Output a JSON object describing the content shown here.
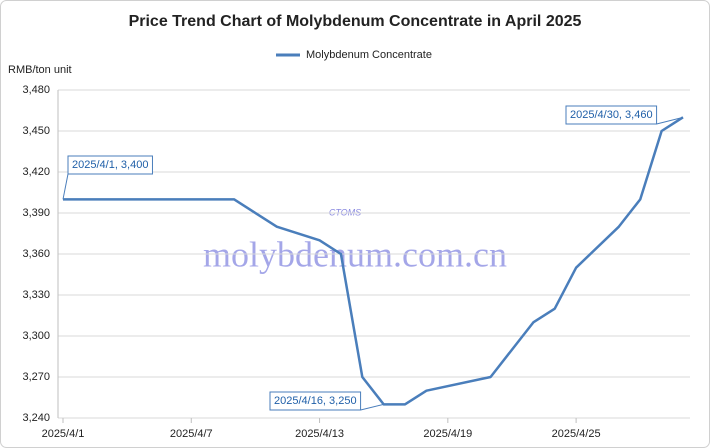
{
  "chart_data": {
    "type": "line",
    "title": "Price Trend Chart of Molybdenum Concentrate in April 2025",
    "y_axis_label": "RMB/ton unit",
    "watermark": "molybdenum.com.cn",
    "watermark_logo": "CTOMS",
    "x": [
      "2025/4/1",
      "2025/4/9",
      "2025/4/11",
      "2025/4/13",
      "2025/4/14",
      "2025/4/15",
      "2025/4/16",
      "2025/4/17",
      "2025/4/18",
      "2025/4/21",
      "2025/4/23",
      "2025/4/24",
      "2025/4/25",
      "2025/4/27",
      "2025/4/28",
      "2025/4/29",
      "2025/4/30"
    ],
    "series": [
      {
        "name": "Molybdenum Concentrate",
        "color": "#4a7ebb",
        "values": [
          3400,
          3400,
          3380,
          3370,
          3360,
          3270,
          3250,
          3250,
          3260,
          3270,
          3310,
          3320,
          3350,
          3380,
          3400,
          3450,
          3460
        ]
      }
    ],
    "xlim": [
      "2025/4/1",
      "2025/4/30"
    ],
    "xticks": [
      "2025/4/1",
      "2025/4/7",
      "2025/4/13",
      "2025/4/19",
      "2025/4/25"
    ],
    "ylim": [
      3240,
      3480
    ],
    "yticks": [
      {
        "value": 3240,
        "label": "3,240"
      },
      {
        "value": 3270,
        "label": "3,270"
      },
      {
        "value": 3300,
        "label": "3,300"
      },
      {
        "value": 3330,
        "label": "3,330"
      },
      {
        "value": 3360,
        "label": "3,360"
      },
      {
        "value": 3390,
        "label": "3,390"
      },
      {
        "value": 3420,
        "label": "3,420"
      },
      {
        "value": 3450,
        "label": "3,450"
      },
      {
        "value": 3480,
        "label": "3,480"
      }
    ],
    "grid": true,
    "legend": "top",
    "annotations": [
      "2025/4/1, 3,400",
      "2025/4/16, 3,250",
      "2025/4/30, 3,460"
    ]
  }
}
